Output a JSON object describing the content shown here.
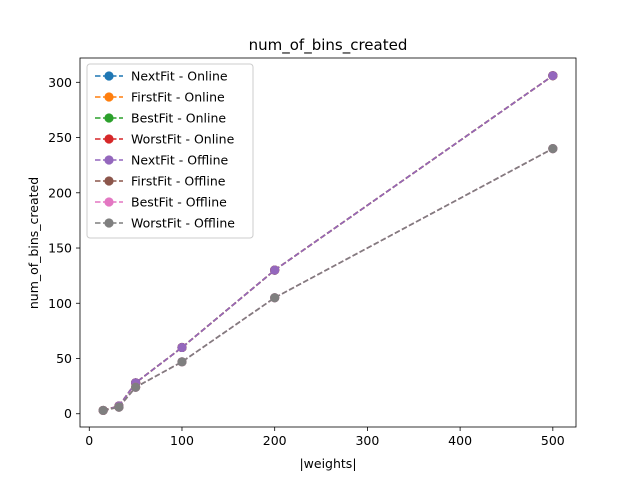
{
  "chart_data": {
    "type": "line",
    "title": "num_of_bins_created",
    "xlabel": "|weights|",
    "ylabel": "num_of_bins_created",
    "xlim": [
      -10,
      525
    ],
    "ylim": [
      -12,
      322
    ],
    "xticks": [
      0,
      100,
      200,
      300,
      400,
      500
    ],
    "yticks": [
      0,
      50,
      100,
      150,
      200,
      250,
      300
    ],
    "grid": false,
    "legend_position": "top-left",
    "line_style": "dashed",
    "marker": "circle",
    "series": [
      {
        "name": "NextFit - Online",
        "color": "#1f77b4",
        "x": [
          15,
          32,
          50,
          100,
          200,
          500
        ],
        "y": [
          3,
          7,
          28,
          60,
          130,
          306
        ]
      },
      {
        "name": "FirstFit - Online",
        "color": "#ff7f0e",
        "x": [
          15,
          32,
          50,
          100,
          200,
          500
        ],
        "y": [
          3,
          7,
          28,
          60,
          130,
          306
        ]
      },
      {
        "name": "BestFit - Online",
        "color": "#2ca02c",
        "x": [
          15,
          32,
          50,
          100,
          200,
          500
        ],
        "y": [
          3,
          7,
          28,
          60,
          130,
          306
        ]
      },
      {
        "name": "WorstFit - Online",
        "color": "#d62728",
        "x": [
          15,
          32,
          50,
          100,
          200,
          500
        ],
        "y": [
          3,
          7,
          28,
          60,
          130,
          306
        ]
      },
      {
        "name": "NextFit - Offline",
        "color": "#9467bd",
        "x": [
          15,
          32,
          50,
          100,
          200,
          500
        ],
        "y": [
          3,
          7,
          28,
          60,
          130,
          306
        ]
      },
      {
        "name": "FirstFit - Offline",
        "color": "#8c564b",
        "x": [
          15,
          32,
          50,
          100,
          200,
          500
        ],
        "y": [
          3,
          6,
          24,
          47,
          105,
          240
        ]
      },
      {
        "name": "BestFit - Offline",
        "color": "#e377c2",
        "x": [
          15,
          32,
          50,
          100,
          200,
          500
        ],
        "y": [
          3,
          6,
          24,
          47,
          105,
          240
        ]
      },
      {
        "name": "WorstFit - Offline",
        "color": "#7f7f7f",
        "x": [
          15,
          32,
          50,
          100,
          200,
          500
        ],
        "y": [
          3,
          6,
          24,
          47,
          105,
          240
        ]
      }
    ]
  }
}
